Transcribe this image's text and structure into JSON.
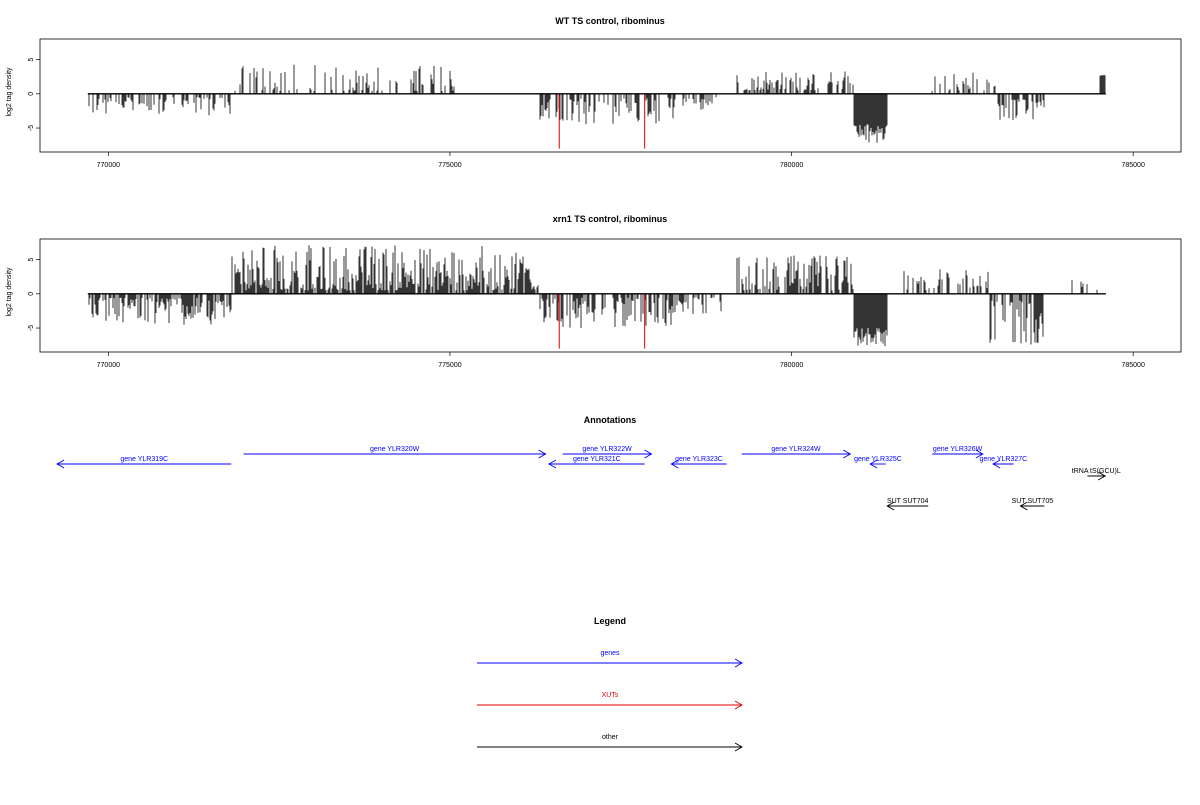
{
  "chart_data": [
    {
      "type": "bar",
      "title": "WT TS control, ribominus",
      "ylabel": "log2 tag density",
      "xlabel": "",
      "xlim": [
        769000,
        785700
      ],
      "ylim": [
        -8.5,
        8
      ],
      "x_ticks": [
        770000,
        775000,
        780000,
        785000
      ],
      "x_tick_labels": [
        "770000",
        "775000",
        "780000",
        "785000"
      ],
      "y_ticks": [
        -5,
        0,
        5
      ],
      "y_tick_labels": [
        "-5",
        "0",
        "5"
      ],
      "baseline": {
        "from": 769700,
        "to": 784600,
        "value": 0
      },
      "colors": {
        "signal": "#000000",
        "xut": "#e00000"
      },
      "highlight_bars": [
        {
          "x": 776600,
          "y": -8
        },
        {
          "x": 777850,
          "y": -8
        }
      ],
      "regions": [
        {
          "from": 769700,
          "to": 771800,
          "sign": -1,
          "density": 0.45,
          "min": 0.5,
          "max": 3.2
        },
        {
          "from": 771800,
          "to": 775100,
          "sign": 1,
          "density": 0.35,
          "min": 0.4,
          "max": 4.3
        },
        {
          "from": 776300,
          "to": 778300,
          "sign": -1,
          "density": 0.5,
          "min": 0.6,
          "max": 4.5
        },
        {
          "from": 778400,
          "to": 778900,
          "sign": -1,
          "density": 0.4,
          "min": 0.5,
          "max": 2.6
        },
        {
          "from": 779200,
          "to": 780900,
          "sign": 1,
          "density": 0.55,
          "min": 0.5,
          "max": 3.4
        },
        {
          "from": 780900,
          "to": 781400,
          "sign": -1,
          "density": 1.0,
          "min": 4.5,
          "max": 7.5
        },
        {
          "from": 782000,
          "to": 783000,
          "sign": 1,
          "density": 0.3,
          "min": 0.4,
          "max": 3.2
        },
        {
          "from": 783000,
          "to": 783700,
          "sign": -1,
          "density": 0.6,
          "min": 0.8,
          "max": 4.0
        },
        {
          "from": 784500,
          "to": 784600,
          "sign": 1,
          "density": 1.0,
          "min": 2.6,
          "max": 2.8
        }
      ]
    },
    {
      "type": "bar",
      "title": "xrn1 TS control, ribominus",
      "ylabel": "log2 tag density",
      "xlabel": "",
      "xlim": [
        769000,
        785700
      ],
      "ylim": [
        -8.5,
        8
      ],
      "x_ticks": [
        770000,
        775000,
        780000,
        785000
      ],
      "x_tick_labels": [
        "770000",
        "775000",
        "780000",
        "785000"
      ],
      "y_ticks": [
        -5,
        0,
        5
      ],
      "y_tick_labels": [
        "-5",
        "0",
        "5"
      ],
      "baseline": {
        "from": 769700,
        "to": 784600,
        "value": 0
      },
      "colors": {
        "signal": "#000000",
        "xut": "#e00000"
      },
      "highlight_bars": [
        {
          "x": 776600,
          "y": -8
        },
        {
          "x": 777850,
          "y": -8
        }
      ],
      "regions": [
        {
          "from": 769700,
          "to": 771800,
          "sign": -1,
          "density": 0.75,
          "min": 0.6,
          "max": 4.5
        },
        {
          "from": 771800,
          "to": 776300,
          "sign": 1,
          "density": 0.85,
          "min": 0.5,
          "max": 7.2
        },
        {
          "from": 776300,
          "to": 778400,
          "sign": -1,
          "density": 0.6,
          "min": 0.6,
          "max": 5.0
        },
        {
          "from": 778400,
          "to": 779000,
          "sign": -1,
          "density": 0.4,
          "min": 0.5,
          "max": 3.0
        },
        {
          "from": 779200,
          "to": 780900,
          "sign": 1,
          "density": 0.7,
          "min": 0.5,
          "max": 5.6
        },
        {
          "from": 780900,
          "to": 781400,
          "sign": -1,
          "density": 1.0,
          "min": 5.0,
          "max": 7.8
        },
        {
          "from": 781600,
          "to": 782900,
          "sign": 1,
          "density": 0.4,
          "min": 0.4,
          "max": 3.8
        },
        {
          "from": 782900,
          "to": 783700,
          "sign": -1,
          "density": 0.75,
          "min": 1.0,
          "max": 7.5
        },
        {
          "from": 784100,
          "to": 784600,
          "sign": 1,
          "density": 0.3,
          "min": 0.5,
          "max": 2.4
        }
      ]
    },
    {
      "type": "annotation_track",
      "title": "Annotations",
      "xlim": [
        769000,
        785700
      ],
      "features": [
        {
          "label": "gene YLR319C",
          "start": 771800,
          "end": 769250,
          "row": 1,
          "kind": "genes"
        },
        {
          "label": "gene YLR320W",
          "start": 771980,
          "end": 776400,
          "row": 0,
          "kind": "genes"
        },
        {
          "label": "gene YLR321C",
          "start": 777850,
          "end": 776450,
          "row": 1,
          "kind": "genes"
        },
        {
          "label": "gene YLR322W",
          "start": 776650,
          "end": 777950,
          "row": 0,
          "kind": "genes"
        },
        {
          "label": "gene YLR323C",
          "start": 779050,
          "end": 778240,
          "row": 1,
          "kind": "genes"
        },
        {
          "label": "gene YLR324W",
          "start": 779270,
          "end": 780860,
          "row": 0,
          "kind": "genes"
        },
        {
          "label": "gene YLR325C",
          "start": 781380,
          "end": 781150,
          "row": 1,
          "kind": "genes"
        },
        {
          "label": "gene YLR326W",
          "start": 782060,
          "end": 782800,
          "row": 0,
          "kind": "genes"
        },
        {
          "label": "gene YLR327C",
          "start": 783250,
          "end": 782950,
          "row": 1,
          "kind": "genes"
        },
        {
          "label": "tRNA tS(GCU)L",
          "start": 784330,
          "end": 784590,
          "row": 2,
          "kind": "other"
        },
        {
          "label": "SUT SUT704",
          "start": 782000,
          "end": 781400,
          "row": 3,
          "kind": "other"
        },
        {
          "label": "SUT SUT705",
          "start": 783700,
          "end": 783350,
          "row": 3,
          "kind": "other"
        }
      ]
    }
  ],
  "legend": {
    "title": "Legend",
    "items": [
      {
        "label": "genes",
        "color": "#0000ff"
      },
      {
        "label": "XUTs",
        "color": "#e00000"
      },
      {
        "label": "other",
        "color": "#000000"
      }
    ]
  }
}
